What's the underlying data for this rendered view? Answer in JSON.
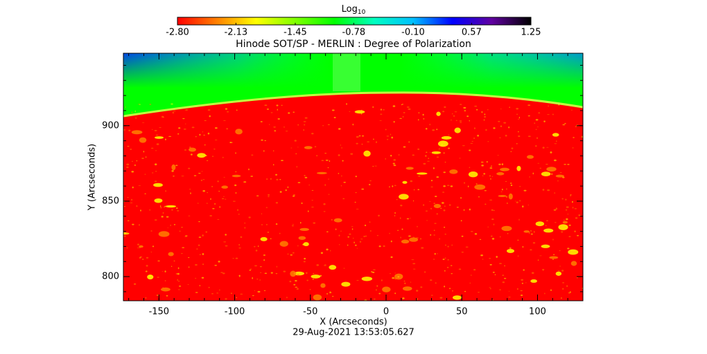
{
  "chart_data": {
    "type": "image",
    "title": "Hinode SOT/SP - MERLIN : Degree of Polarization",
    "x_label": "X (Arcseconds)",
    "y_label": "Y (Arcseconds)",
    "date": "29-Aug-2021 13:53:05.627",
    "xlim": [
      -173.5,
      130
    ],
    "xticks": [
      -150,
      -100,
      -50,
      0,
      50,
      100
    ],
    "ylim": [
      784,
      948
    ],
    "yticks": [
      800,
      850,
      900
    ],
    "colorbar": {
      "label": "Log",
      "label_subscript": "10",
      "lim": [
        -2.8,
        1.25
      ],
      "ticks": [
        {
          "value": -2.8,
          "label": "-2.80"
        },
        -2.13,
        -1.45,
        -0.78,
        {
          "value": -0.1,
          "label": "-0.10"
        },
        0.57,
        1.25
      ],
      "colormap": [
        "#ff0000",
        "#ff8000",
        "#ffff00",
        "#80ff00",
        "#00ff00",
        "#00ffc0",
        "#00c0ff",
        "#0000ff",
        "#6000a0",
        "#000000"
      ]
    }
  }
}
